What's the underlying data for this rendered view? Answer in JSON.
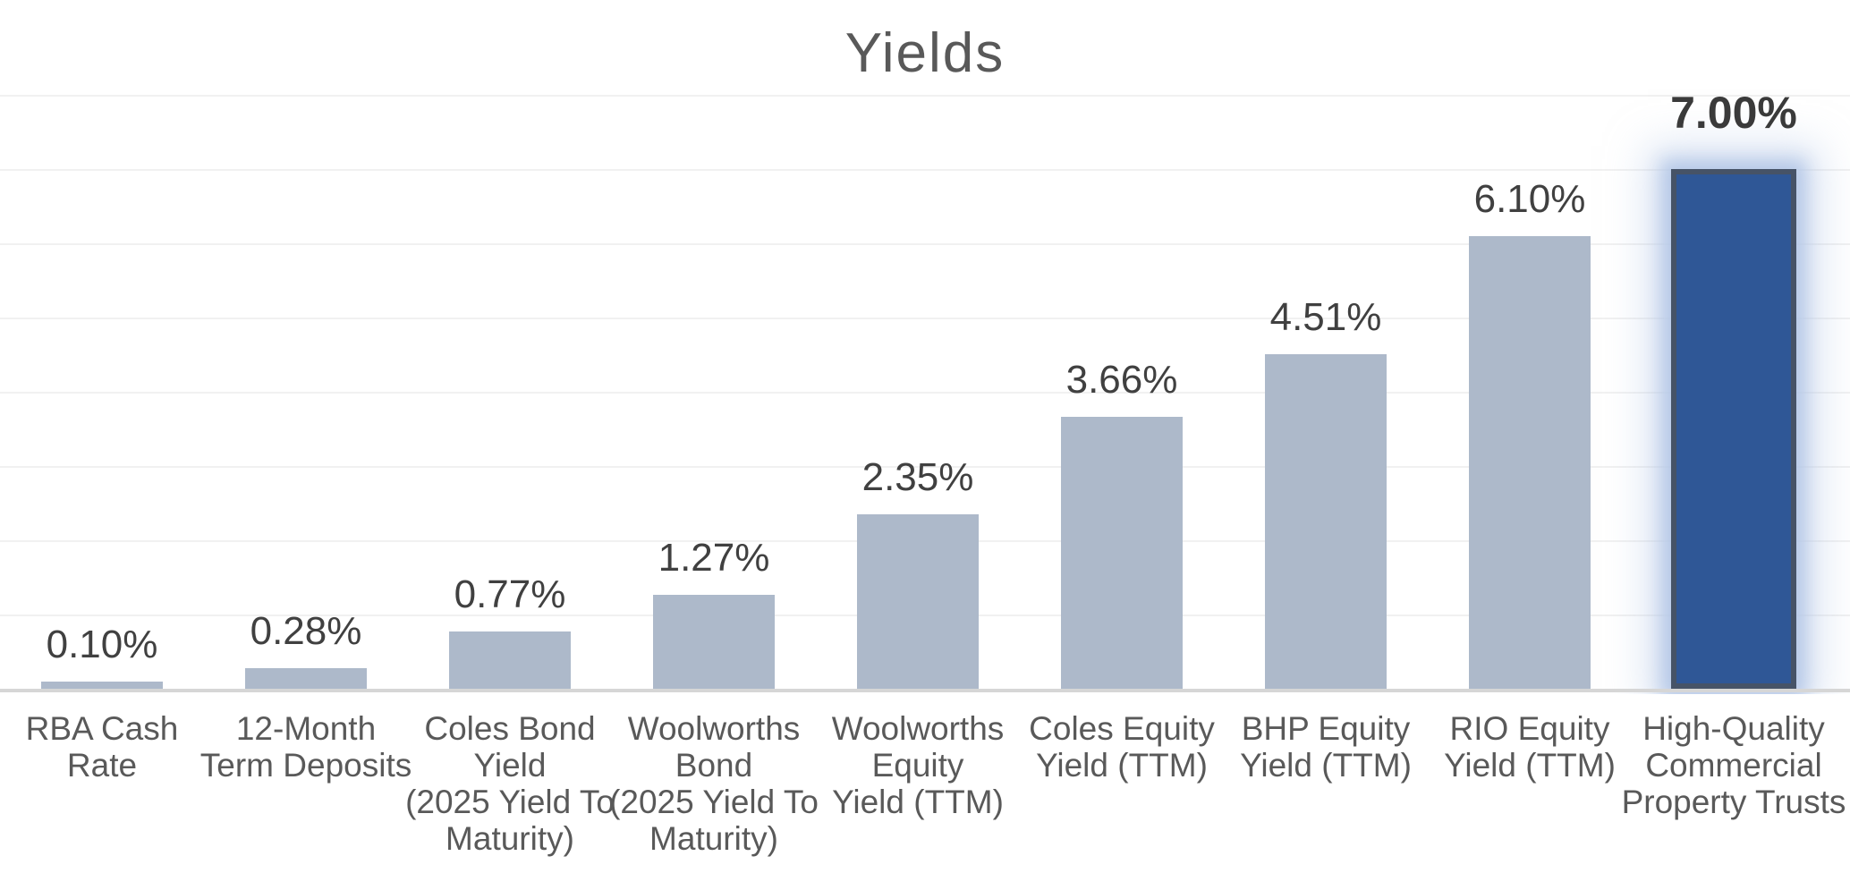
{
  "chart_data": {
    "type": "bar",
    "title": "Yields",
    "categories": [
      "RBA Cash\nRate",
      "12-Month\nTerm Deposits",
      "Coles Bond\nYield\n(2025 Yield To\nMaturity)",
      "Woolworths\nBond\n(2025 Yield To\nMaturity)",
      "Woolworths\nEquity\nYield (TTM)",
      "Coles Equity\nYield (TTM)",
      "BHP Equity\nYield (TTM)",
      "RIO Equity\nYield (TTM)",
      "High-Quality\nCommercial\nProperty Trusts"
    ],
    "values": [
      0.1,
      0.28,
      0.77,
      1.27,
      2.35,
      3.66,
      4.51,
      6.1,
      7.0
    ],
    "value_labels": [
      "0.10%",
      "0.28%",
      "0.77%",
      "1.27%",
      "2.35%",
      "3.66%",
      "4.51%",
      "6.10%",
      "7.00%"
    ],
    "unit": "%",
    "xlabel": "",
    "ylabel": "",
    "ylim": [
      0,
      8
    ],
    "gridline_step": 1,
    "grid": true,
    "y_axis_tick_labels_visible": false,
    "legend": "none",
    "highlight_index": 8,
    "colors": {
      "bar_fill": "#ADB9CA",
      "highlight_fill": "#2F5796",
      "highlight_border": "#465367",
      "highlight_glow": "#B4C7E7",
      "title_text": "#595959",
      "value_label_text": "#404040",
      "highlight_value_label_text": "#3A3A3A",
      "category_label_text": "#595959",
      "gridline": "#F1F1F1",
      "axis_line": "#D6D6D6",
      "background": "#FFFFFF"
    }
  }
}
